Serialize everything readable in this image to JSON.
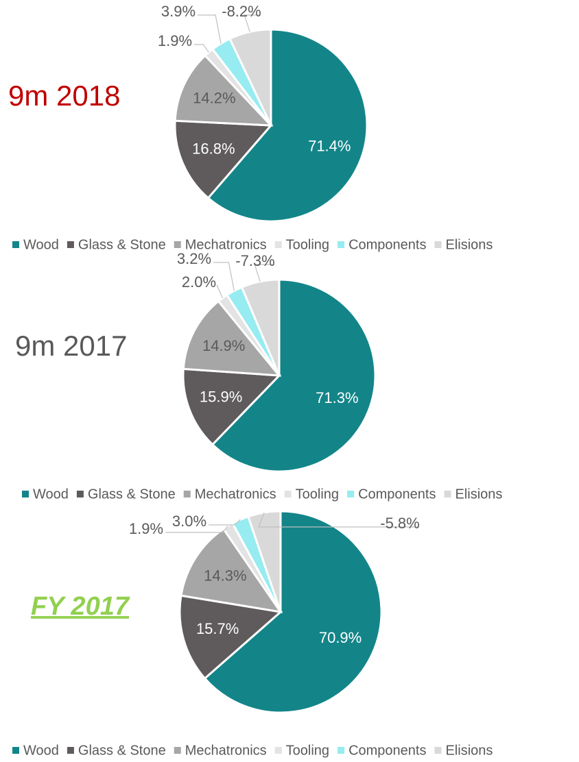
{
  "chart_data": [
    {
      "type": "pie",
      "title": "9m 2018",
      "categories": [
        "Wood",
        "Glass & Stone",
        "Mechatronics",
        "Tooling",
        "Components",
        "Elisions"
      ],
      "values": [
        71.4,
        16.8,
        14.2,
        1.9,
        3.9,
        -8.2
      ],
      "value_labels": [
        "71.4%",
        "16.8%",
        "14.2%",
        "1.9%",
        "3.9%",
        "-8.2%"
      ],
      "colors": [
        "#138589",
        "#5f5b5c",
        "#a6a6a6",
        "#e3e3e3",
        "#96ecf0",
        "#d9d9d9"
      ],
      "legend": "bottom"
    },
    {
      "type": "pie",
      "title": "9m 2017",
      "categories": [
        "Wood",
        "Glass & Stone",
        "Mechatronics",
        "Tooling",
        "Components",
        "Elisions"
      ],
      "values": [
        71.3,
        15.9,
        14.9,
        2.0,
        3.2,
        -7.3
      ],
      "value_labels": [
        "71.3%",
        "15.9%",
        "14.9%",
        "2.0%",
        "3.2%",
        "-7.3%"
      ],
      "colors": [
        "#138589",
        "#5f5b5c",
        "#a6a6a6",
        "#e3e3e3",
        "#96ecf0",
        "#d9d9d9"
      ],
      "legend": "bottom"
    },
    {
      "type": "pie",
      "title": "FY 2017",
      "categories": [
        "Wood",
        "Glass & Stone",
        "Mechatronics",
        "Tooling",
        "Components",
        "Elisions"
      ],
      "values": [
        70.9,
        15.7,
        14.3,
        1.9,
        3.0,
        -5.8
      ],
      "value_labels": [
        "70.9%",
        "15.7%",
        "14.3%",
        "1.9%",
        "3.0%",
        "-5.8%"
      ],
      "colors": [
        "#138589",
        "#5f5b5c",
        "#a6a6a6",
        "#e3e3e3",
        "#96ecf0",
        "#d9d9d9"
      ],
      "legend": "bottom"
    }
  ]
}
